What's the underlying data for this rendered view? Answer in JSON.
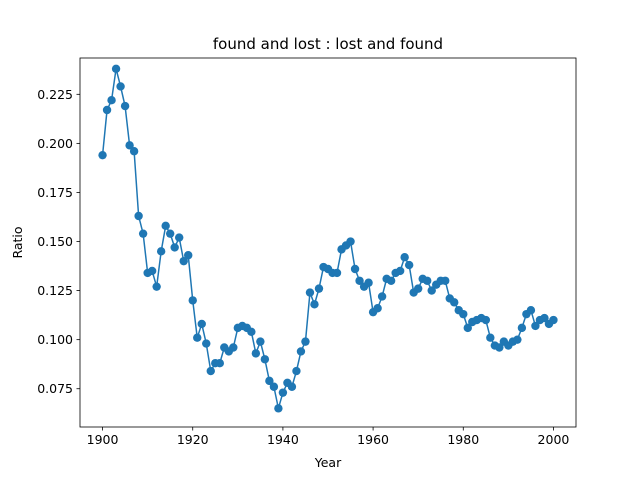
{
  "chart_data": {
    "type": "line",
    "title": "found and lost : lost and found",
    "xlabel": "Year",
    "ylabel": "Ratio",
    "xlim": [
      1895,
      2005
    ],
    "ylim": [
      0.0555,
      0.2435
    ],
    "x_ticks": [
      1900,
      1920,
      1940,
      1960,
      1980,
      2000
    ],
    "x_tick_labels": [
      "1900",
      "1920",
      "1940",
      "1960",
      "1980",
      "2000"
    ],
    "y_ticks": [
      0.075,
      0.1,
      0.125,
      0.15,
      0.175,
      0.2,
      0.225
    ],
    "y_tick_labels": [
      "0.075",
      "0.100",
      "0.125",
      "0.150",
      "0.175",
      "0.200",
      "0.225"
    ],
    "grid": false,
    "series": [
      {
        "color": "#1f77b4",
        "marker": "circle",
        "x": [
          1900,
          1901,
          1902,
          1903,
          1904,
          1905,
          1906,
          1907,
          1908,
          1909,
          1910,
          1911,
          1912,
          1913,
          1914,
          1915,
          1916,
          1917,
          1918,
          1919,
          1920,
          1921,
          1922,
          1923,
          1924,
          1925,
          1926,
          1927,
          1928,
          1929,
          1930,
          1931,
          1932,
          1933,
          1934,
          1935,
          1936,
          1937,
          1938,
          1939,
          1940,
          1941,
          1942,
          1943,
          1944,
          1945,
          1946,
          1947,
          1948,
          1949,
          1950,
          1951,
          1952,
          1953,
          1954,
          1955,
          1956,
          1957,
          1958,
          1959,
          1960,
          1961,
          1962,
          1963,
          1964,
          1965,
          1966,
          1967,
          1968,
          1969,
          1970,
          1971,
          1972,
          1973,
          1974,
          1975,
          1976,
          1977,
          1978,
          1979,
          1980,
          1981,
          1982,
          1983,
          1984,
          1985,
          1986,
          1987,
          1988,
          1989,
          1990,
          1991,
          1992,
          1993,
          1994,
          1995,
          1996,
          1997,
          1998,
          1999,
          2000
        ],
        "y": [
          0.194,
          0.217,
          0.222,
          0.238,
          0.229,
          0.219,
          0.199,
          0.196,
          0.163,
          0.154,
          0.134,
          0.135,
          0.127,
          0.145,
          0.158,
          0.154,
          0.147,
          0.152,
          0.14,
          0.143,
          0.12,
          0.101,
          0.108,
          0.098,
          0.084,
          0.088,
          0.088,
          0.096,
          0.094,
          0.096,
          0.106,
          0.107,
          0.106,
          0.104,
          0.093,
          0.099,
          0.09,
          0.079,
          0.076,
          0.065,
          0.073,
          0.078,
          0.076,
          0.084,
          0.094,
          0.099,
          0.124,
          0.118,
          0.126,
          0.137,
          0.136,
          0.134,
          0.134,
          0.146,
          0.148,
          0.15,
          0.136,
          0.13,
          0.127,
          0.129,
          0.114,
          0.116,
          0.122,
          0.131,
          0.13,
          0.134,
          0.135,
          0.142,
          0.138,
          0.124,
          0.126,
          0.131,
          0.13,
          0.125,
          0.128,
          0.13,
          0.13,
          0.121,
          0.119,
          0.115,
          0.113,
          0.106,
          0.109,
          0.11,
          0.111,
          0.11,
          0.101,
          0.097,
          0.096,
          0.099,
          0.097,
          0.099,
          0.1,
          0.106,
          0.113,
          0.115,
          0.107,
          0.11,
          0.111,
          0.108,
          0.11
        ]
      }
    ]
  }
}
